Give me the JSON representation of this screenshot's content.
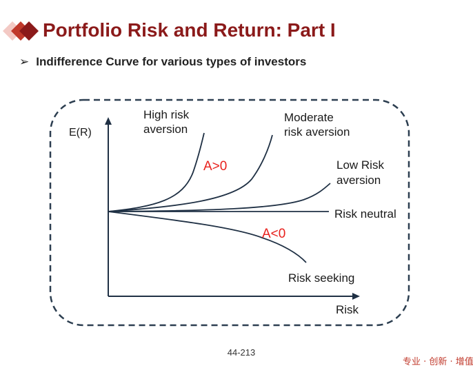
{
  "slide": {
    "title": "Portfolio Risk and Return: Part I",
    "subtitle": "Indifference Curve for various types of investors",
    "bullet": "➢",
    "page_number": "44-213",
    "footer_slogan": "专业 · 创新 · 增值"
  },
  "colors": {
    "title": "#8b1a1a",
    "logo_light": "#f3c9c4",
    "logo_mid": "#c0392b",
    "logo_dark": "#8b1a1a",
    "curve": "#1f3044",
    "annotation": "#e8201c",
    "footer": "#c0392b"
  },
  "diagram": {
    "y_axis_label": "E(R)",
    "x_axis_label": "Risk",
    "curves": [
      {
        "label_lines": [
          "High risk",
          "aversion"
        ]
      },
      {
        "label_lines": [
          "Moderate",
          "risk aversion"
        ]
      },
      {
        "label_lines": [
          "Low Risk",
          "aversion"
        ]
      },
      {
        "label_lines": [
          "Risk neutral"
        ]
      },
      {
        "label_lines": [
          "Risk seeking"
        ]
      }
    ],
    "annotations": {
      "positive": "A>0",
      "negative": "A<0"
    }
  }
}
